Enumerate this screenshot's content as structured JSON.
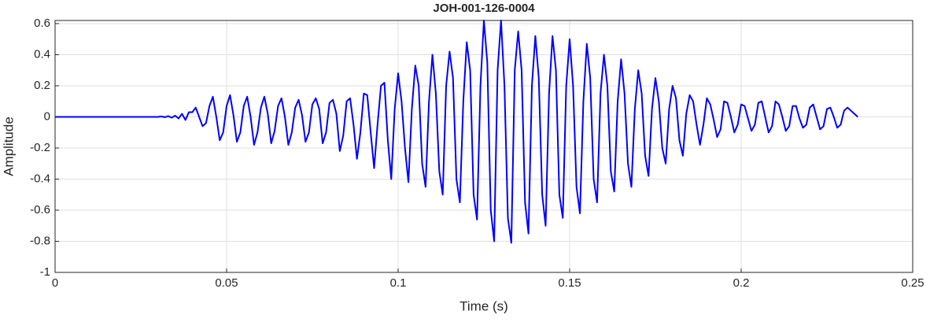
{
  "chart_data": {
    "type": "line",
    "title": "JOH-001-126-0004",
    "x_label": "Time (s)",
    "y_label": "Amplitude",
    "color": "#0000ff",
    "grid": true,
    "xlim": [
      0,
      0.25
    ],
    "xticks": [
      0,
      0.05,
      0.1,
      0.15,
      0.2,
      0.25
    ],
    "ylim": [
      -1,
      0.62
    ],
    "yticks": [
      0.6,
      0.4,
      0.2,
      0,
      -0.2,
      -0.4,
      -0.6,
      -0.8,
      -1
    ],
    "x": [
      0,
      0.001,
      0.002,
      0.003,
      0.004,
      0.005,
      0.006,
      0.007,
      0.008,
      0.009,
      0.01,
      0.011,
      0.012,
      0.013,
      0.014,
      0.015,
      0.016,
      0.017,
      0.018,
      0.019,
      0.02,
      0.021,
      0.022,
      0.023,
      0.024,
      0.025,
      0.026,
      0.027,
      0.028,
      0.029,
      0.03,
      0.031,
      0.032,
      0.033,
      0.034,
      0.035,
      0.036,
      0.037,
      0.038,
      0.039,
      0.04,
      0.041,
      0.042,
      0.043,
      0.044,
      0.045,
      0.046,
      0.047,
      0.048,
      0.049,
      0.05,
      0.051,
      0.052,
      0.053,
      0.054,
      0.055,
      0.056,
      0.057,
      0.058,
      0.059,
      0.06,
      0.061,
      0.062,
      0.063,
      0.064,
      0.065,
      0.066,
      0.067,
      0.068,
      0.069,
      0.07,
      0.071,
      0.072,
      0.073,
      0.074,
      0.075,
      0.076,
      0.077,
      0.078,
      0.079,
      0.08,
      0.081,
      0.082,
      0.083,
      0.084,
      0.085,
      0.086,
      0.087,
      0.088,
      0.089,
      0.09,
      0.091,
      0.092,
      0.093,
      0.094,
      0.095,
      0.096,
      0.097,
      0.098,
      0.099,
      0.1,
      0.101,
      0.102,
      0.103,
      0.104,
      0.105,
      0.106,
      0.107,
      0.108,
      0.109,
      0.11,
      0.111,
      0.112,
      0.113,
      0.114,
      0.115,
      0.116,
      0.117,
      0.118,
      0.119,
      0.12,
      0.121,
      0.122,
      0.123,
      0.124,
      0.125,
      0.126,
      0.127,
      0.128,
      0.129,
      0.13,
      0.131,
      0.132,
      0.133,
      0.134,
      0.135,
      0.136,
      0.137,
      0.138,
      0.139,
      0.14,
      0.141,
      0.142,
      0.143,
      0.144,
      0.145,
      0.146,
      0.147,
      0.148,
      0.149,
      0.15,
      0.151,
      0.152,
      0.153,
      0.154,
      0.155,
      0.156,
      0.157,
      0.158,
      0.159,
      0.16,
      0.161,
      0.162,
      0.163,
      0.164,
      0.165,
      0.166,
      0.167,
      0.168,
      0.169,
      0.17,
      0.171,
      0.172,
      0.173,
      0.174,
      0.175,
      0.176,
      0.177,
      0.178,
      0.179,
      0.18,
      0.181,
      0.182,
      0.183,
      0.184,
      0.185,
      0.186,
      0.187,
      0.188,
      0.189,
      0.19,
      0.191,
      0.192,
      0.193,
      0.194,
      0.195,
      0.196,
      0.197,
      0.198,
      0.199,
      0.2,
      0.201,
      0.202,
      0.203,
      0.204,
      0.205,
      0.206,
      0.207,
      0.208,
      0.209,
      0.21,
      0.211,
      0.212,
      0.213,
      0.214,
      0.215,
      0.216,
      0.217,
      0.218,
      0.219,
      0.22,
      0.221,
      0.222,
      0.223,
      0.224,
      0.225,
      0.226,
      0.227,
      0.228,
      0.229,
      0.23,
      0.231,
      0.232,
      0.233,
      0.234
    ],
    "values": [
      0,
      0,
      0,
      0,
      0,
      0,
      0,
      0,
      0,
      0,
      0,
      0,
      0,
      0,
      0,
      0,
      0,
      0,
      0,
      0,
      0,
      0,
      0,
      0,
      0,
      0,
      0,
      0,
      0,
      0,
      0,
      0.003,
      -0.002,
      0.005,
      -0.005,
      0.008,
      -0.01,
      0.02,
      -0.02,
      0.03,
      0.03,
      0.06,
      0,
      -0.06,
      -0.04,
      0.07,
      0.13,
      0,
      -0.15,
      -0.1,
      0.07,
      0.14,
      0.01,
      -0.16,
      -0.1,
      0.07,
      0.13,
      0,
      -0.18,
      -0.1,
      0.06,
      0.13,
      0.02,
      -0.17,
      -0.09,
      0.07,
      0.12,
      0,
      -0.18,
      -0.1,
      0.06,
      0.11,
      0.01,
      -0.16,
      -0.1,
      0.08,
      0.12,
      0.05,
      -0.17,
      -0.1,
      0.09,
      0.11,
      0.02,
      -0.22,
      -0.12,
      0.1,
      0.12,
      -0.05,
      -0.27,
      -0.1,
      0.15,
      0.14,
      -0.1,
      -0.33,
      -0.05,
      0.2,
      0.22,
      -0.15,
      -0.4,
      0.05,
      0.28,
      0.1,
      -0.2,
      -0.42,
      0.05,
      0.33,
      0.2,
      -0.3,
      -0.45,
      0.1,
      0.4,
      0.15,
      -0.35,
      -0.5,
      0.2,
      0.42,
      0.25,
      -0.4,
      -0.55,
      0.1,
      0.48,
      0.3,
      -0.5,
      -0.66,
      0.2,
      0.62,
      0.35,
      -0.6,
      -0.8,
      0.3,
      0.62,
      0.2,
      -0.65,
      -0.81,
      0.3,
      0.55,
      0.3,
      -0.55,
      -0.75,
      0.2,
      0.52,
      0.25,
      -0.5,
      -0.7,
      0.15,
      0.52,
      0.3,
      -0.5,
      -0.65,
      0.2,
      0.5,
      0.2,
      -0.45,
      -0.62,
      0.1,
      0.47,
      0.25,
      -0.4,
      -0.55,
      0.15,
      0.4,
      0.2,
      -0.35,
      -0.48,
      0.1,
      0.37,
      0.15,
      -0.3,
      -0.45,
      0.05,
      0.3,
      0.15,
      -0.25,
      -0.38,
      0.05,
      0.25,
      0.1,
      -0.2,
      -0.3,
      0.05,
      0.2,
      0.12,
      -0.15,
      -0.25,
      0.02,
      0.14,
      0.1,
      -0.05,
      -0.18,
      -0.05,
      0.12,
      0.08,
      -0.02,
      -0.13,
      -0.08,
      0.1,
      0.09,
      0,
      -0.1,
      -0.05,
      0.08,
      0.07,
      -0.01,
      -0.09,
      -0.05,
      0.09,
      0.1,
      0,
      -0.1,
      -0.06,
      0.1,
      0.08,
      0,
      -0.09,
      -0.06,
      0.07,
      0.07,
      -0.01,
      -0.07,
      -0.05,
      0.06,
      0.08,
      0,
      -0.08,
      -0.06,
      0.05,
      0.06,
      0,
      -0.07,
      -0.05,
      0.04,
      0.06,
      0.04,
      0.02,
      0
    ]
  }
}
